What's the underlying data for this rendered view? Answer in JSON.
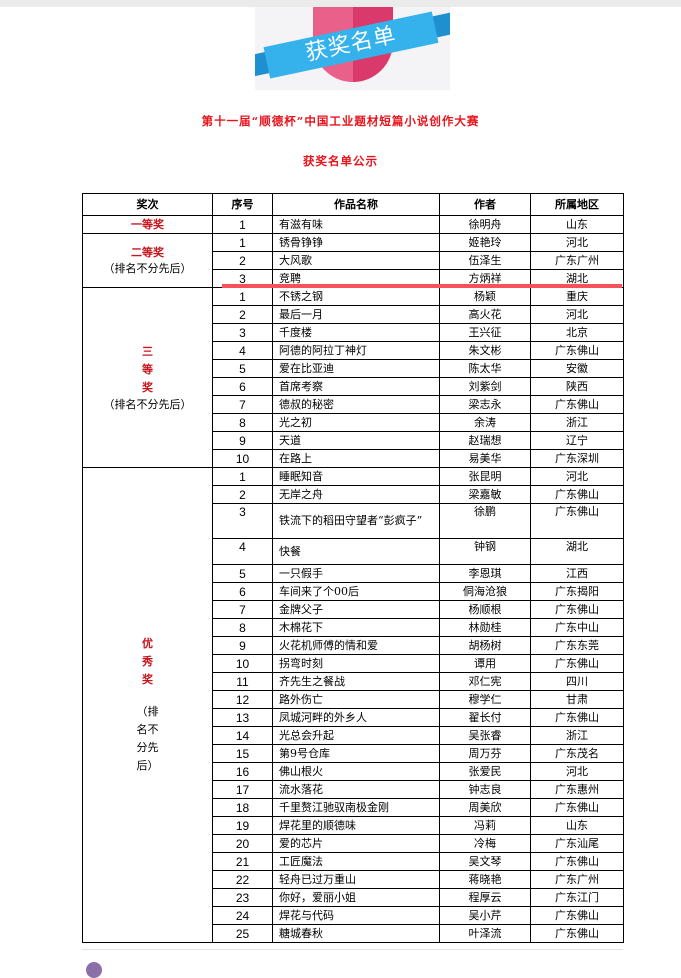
{
  "banner": {
    "text": "获奖名单"
  },
  "heading": "第十一届“顺德杯”中国工业题材短篇小说创作大赛",
  "subheading": "获奖名单公示",
  "colors": {
    "accent_red": "#e8141c",
    "highlight": "#f5525a"
  },
  "table": {
    "headers": [
      "奖次",
      "序号",
      "作品名称",
      "作者",
      "所属地区"
    ],
    "groups": [
      {
        "prize": "一等奖",
        "note": "",
        "vertical": false,
        "rows": [
          [
            "1",
            "有滋有味",
            "徐明舟",
            "山东"
          ]
        ]
      },
      {
        "prize": "二等奖",
        "note": "（排名不分先后）",
        "vertical": false,
        "rows": [
          [
            "1",
            "锈骨铮铮",
            "姬艳玲",
            "河北"
          ],
          [
            "2",
            "大风歌",
            "伍泽生",
            "广东广州"
          ],
          [
            "3",
            "竞聘",
            "方炳祥",
            "湖北"
          ]
        ]
      },
      {
        "prize": "三等奖",
        "note": "（排名不分先后）",
        "vertical": "prize",
        "rows": [
          [
            "1",
            "不锈之钢",
            "杨颖",
            "重庆"
          ],
          [
            "2",
            "最后一月",
            "高火花",
            "河北"
          ],
          [
            "3",
            "千度楼",
            "王兴征",
            "北京"
          ],
          [
            "4",
            "阿德的阿拉丁神灯",
            "朱文彬",
            "广东佛山"
          ],
          [
            "5",
            "爱在比亚迪",
            "陈太华",
            "安徽"
          ],
          [
            "6",
            "首席考察",
            "刘紫剑",
            "陕西"
          ],
          [
            "7",
            "德叔的秘密",
            "梁志永",
            "广东佛山"
          ],
          [
            "8",
            "光之初",
            "余涛",
            "浙江"
          ],
          [
            "9",
            "天道",
            "赵瑞想",
            "辽宁"
          ],
          [
            "10",
            "在路上",
            "易美华",
            "广东深圳"
          ]
        ]
      },
      {
        "prize": "优秀奖",
        "note": "（排名不分先后）",
        "vertical": "all",
        "rows": [
          [
            "1",
            "睡眠知音",
            "张昆明",
            "河北"
          ],
          [
            "2",
            "无岸之舟",
            "梁嘉敏",
            "广东佛山"
          ],
          [
            "3",
            "铁流下的稻田守望者“彭疯子”",
            "徐鹏",
            "广东佛山"
          ],
          [
            "4",
            "快餐",
            "钟钢",
            "湖北"
          ],
          [
            "5",
            "一只假手",
            "李恩琪",
            "江西"
          ],
          [
            "6",
            "车间来了个00后",
            "侗海沧狼",
            "广东揭阳"
          ],
          [
            "7",
            "金牌父子",
            "杨顺根",
            "广东佛山"
          ],
          [
            "8",
            "木棉花下",
            "林勋桂",
            "广东中山"
          ],
          [
            "9",
            "火花机师傅的情和爱",
            "胡杨树",
            "广东东莞"
          ],
          [
            "10",
            "拐弯时刻",
            "谭用",
            "广东佛山"
          ],
          [
            "11",
            "齐先生之餐战",
            "邓仁宪",
            "四川"
          ],
          [
            "12",
            "路外伤亡",
            "穆学仁",
            "甘肃"
          ],
          [
            "13",
            "凤城河畔的外乡人",
            "翟长付",
            "广东佛山"
          ],
          [
            "14",
            "光总会升起",
            "吴张睿",
            "浙江"
          ],
          [
            "15",
            "第9号仓库",
            "周万芬",
            "广东茂名"
          ],
          [
            "16",
            "佛山根火",
            "张爱民",
            "河北"
          ],
          [
            "17",
            "流水落花",
            "钟志良",
            "广东惠州"
          ],
          [
            "18",
            "千里赘江驰驭南极金刚",
            "周美欣",
            "广东佛山"
          ],
          [
            "19",
            "焊花里的顺德味",
            "冯莉",
            "山东"
          ],
          [
            "20",
            "爱的芯片",
            "冷梅",
            "广东汕尾"
          ],
          [
            "21",
            "工匠魔法",
            "吴文琴",
            "广东佛山"
          ],
          [
            "22",
            "轻舟已过万重山",
            "蒋晓艳",
            "广东广州"
          ],
          [
            "23",
            "你好，爱丽小姐",
            "程厚云",
            "广东江门"
          ],
          [
            "24",
            "焊花与代码",
            "吴小芹",
            "广东佛山"
          ],
          [
            "25",
            "糖城春秋",
            "叶泽流",
            "广东佛山"
          ]
        ]
      }
    ]
  }
}
